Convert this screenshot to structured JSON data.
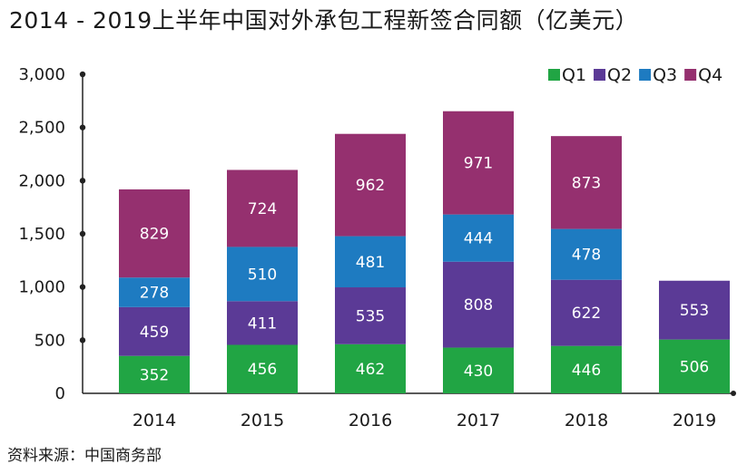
{
  "chart_data": {
    "type": "bar",
    "stacked": true,
    "title": "2014 - 2019上半年中国对外承包工程新签合同额（亿美元）",
    "source": "资料来源：中国商务部",
    "categories": [
      "2014",
      "2015",
      "2016",
      "2017",
      "2018",
      "2019"
    ],
    "ylim": [
      0,
      3000
    ],
    "y_ticks": [
      "0",
      "500",
      "1,000",
      "1,500",
      "2,000",
      "2,500",
      "3,000"
    ],
    "y_tick_values": [
      0,
      500,
      1000,
      1500,
      2000,
      2500,
      3000
    ],
    "legend_position": "top-right",
    "grid": false,
    "series": [
      {
        "name": "Q1",
        "color": "#21a544",
        "values": [
          352,
          456,
          462,
          430,
          446,
          506
        ]
      },
      {
        "name": "Q2",
        "color": "#5b3a96",
        "values": [
          459,
          411,
          535,
          808,
          622,
          553
        ]
      },
      {
        "name": "Q3",
        "color": "#1e7bc1",
        "values": [
          278,
          510,
          481,
          444,
          478,
          null
        ]
      },
      {
        "name": "Q4",
        "color": "#95306f",
        "values": [
          829,
          724,
          962,
          971,
          873,
          null
        ]
      }
    ]
  }
}
